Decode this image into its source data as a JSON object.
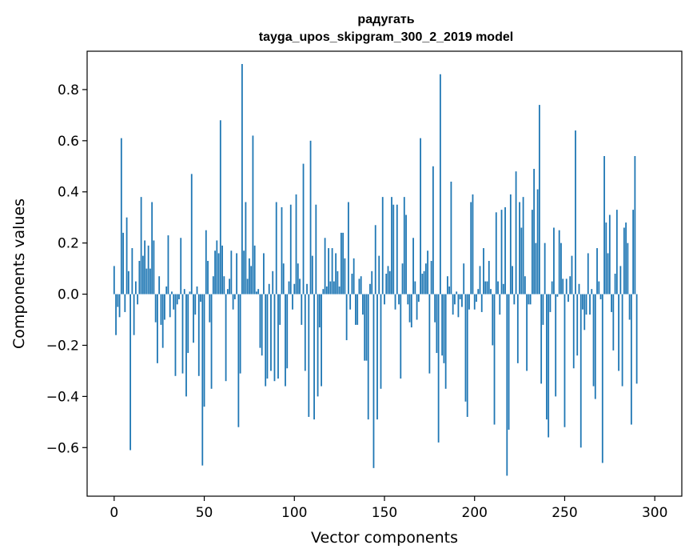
{
  "chart_data": {
    "type": "bar",
    "title_line1": "радугать",
    "title_line2": "tayga_upos_skipgram_300_2_2019 model",
    "xlabel": "Vector components",
    "ylabel": "Components values",
    "xlim": [
      -15,
      315
    ],
    "ylim": [
      -0.79,
      0.95
    ],
    "xticks": [
      0,
      50,
      100,
      150,
      200,
      250,
      300
    ],
    "xtick_labels": [
      "0",
      "50",
      "100",
      "150",
      "200",
      "250",
      "300"
    ],
    "yticks": [
      -0.6,
      -0.4,
      -0.2,
      0.0,
      0.2,
      0.4,
      0.6,
      0.8
    ],
    "ytick_labels": [
      "−0.6",
      "−0.4",
      "−0.2",
      "0.0",
      "0.2",
      "0.4",
      "0.6",
      "0.8"
    ],
    "bar_color": "#1f77b4",
    "x": "0..299",
    "values": [
      0.11,
      -0.16,
      -0.05,
      -0.09,
      0.61,
      0.24,
      -0.07,
      0.3,
      0.09,
      -0.61,
      0.18,
      -0.16,
      0.05,
      -0.04,
      0.13,
      0.38,
      0.15,
      0.21,
      0.1,
      0.19,
      0.1,
      0.36,
      0.21,
      -0.11,
      -0.27,
      0.07,
      -0.12,
      -0.21,
      -0.1,
      0.03,
      0.23,
      -0.09,
      0.01,
      -0.06,
      -0.32,
      -0.04,
      -0.02,
      0.22,
      -0.31,
      0.02,
      -0.4,
      -0.23,
      0.01,
      0.47,
      -0.19,
      -0.08,
      0.03,
      -0.32,
      -0.03,
      -0.67,
      -0.44,
      0.25,
      0.13,
      -0.11,
      -0.37,
      0.07,
      0.17,
      0.21,
      0.16,
      0.68,
      0.19,
      0.07,
      -0.34,
      0.02,
      0.06,
      0.17,
      -0.06,
      -0.02,
      0.16,
      -0.52,
      -0.31,
      0.9,
      0.17,
      0.36,
      0.06,
      0.14,
      0.11,
      0.62,
      0.19,
      0.01,
      0.02,
      -0.21,
      -0.24,
      0.16,
      -0.36,
      -0.33,
      0.04,
      -0.3,
      0.09,
      -0.34,
      0.36,
      -0.33,
      -0.12,
      0.34,
      0.12,
      -0.36,
      -0.29,
      0.05,
      0.35,
      -0.06,
      0.04,
      0.39,
      0.12,
      0.06,
      -0.12,
      0.51,
      -0.3,
      0.04,
      -0.48,
      0.6,
      0.15,
      -0.49,
      0.35,
      -0.4,
      -0.13,
      -0.36,
      0.02,
      0.22,
      0.03,
      0.18,
      0.05,
      0.18,
      0.05,
      0.16,
      0.09,
      0.03,
      0.24,
      0.24,
      0.14,
      -0.18,
      0.36,
      -0.06,
      0.08,
      0.14,
      -0.12,
      -0.12,
      0.06,
      0.07,
      -0.08,
      -0.26,
      -0.26,
      -0.49,
      0.04,
      0.09,
      -0.68,
      0.27,
      -0.49,
      0.15,
      -0.37,
      0.38,
      -0.04,
      0.08,
      0.11,
      0.09,
      0.38,
      0.35,
      -0.06,
      0.35,
      -0.04,
      -0.33,
      0.12,
      0.38,
      0.31,
      -0.04,
      -0.11,
      -0.13,
      0.22,
      0.05,
      -0.1,
      -0.03,
      0.61,
      0.08,
      0.09,
      0.12,
      0.17,
      -0.31,
      0.13,
      0.5,
      -0.11,
      -0.23,
      -0.58,
      0.86,
      -0.24,
      -0.27,
      -0.37,
      0.07,
      0.03,
      0.44,
      -0.08,
      -0.04,
      0.01,
      -0.09,
      -0.02,
      -0.05,
      0.12,
      -0.42,
      -0.48,
      -0.06,
      0.36,
      0.39,
      -0.06,
      -0.03,
      0.02,
      0.11,
      -0.07,
      0.18,
      0.05,
      0.05,
      0.13,
      0.02,
      -0.2,
      -0.51,
      0.32,
      0.05,
      -0.08,
      0.33,
      0.04,
      0.34,
      -0.71,
      -0.53,
      0.39,
      0.11,
      -0.04,
      0.48,
      -0.27,
      0.36,
      0.26,
      0.38,
      0.07,
      -0.3,
      -0.04,
      -0.04,
      0.33,
      0.49,
      0.2,
      0.41,
      0.74,
      -0.35,
      -0.12,
      0.2,
      -0.49,
      -0.56,
      -0.07,
      0.05,
      0.26,
      -0.4,
      -0.01,
      0.25,
      0.2,
      0.06,
      -0.52,
      0.06,
      -0.03,
      0.07,
      0.15,
      -0.29,
      0.64,
      -0.24,
      0.04,
      -0.6,
      -0.06,
      -0.14,
      -0.08,
      0.16,
      -0.08,
      0.02,
      -0.36,
      -0.41,
      0.18,
      0.05,
      -0.02,
      -0.66,
      0.54,
      0.28,
      0.16,
      0.31,
      -0.07,
      -0.22,
      0.08,
      0.33,
      -0.3,
      0.11,
      -0.36,
      0.26,
      0.28,
      0.2,
      -0.1,
      -0.51,
      0.33,
      0.54,
      -0.35
    ]
  }
}
